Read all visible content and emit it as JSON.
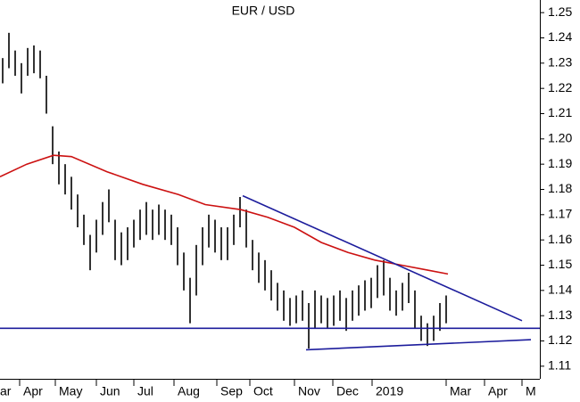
{
  "chart_data": {
    "type": "ohlc",
    "title": "EUR / USD",
    "xlim": [
      0,
      605
    ],
    "ylim": [
      1.105,
      1.255
    ],
    "xticks": [
      {
        "value": -4,
        "label": "ar"
      },
      {
        "value": 22,
        "label": "Apr"
      },
      {
        "value": 62,
        "label": "May"
      },
      {
        "value": 108,
        "label": "Jun"
      },
      {
        "value": 150,
        "label": "Jul"
      },
      {
        "value": 195,
        "label": "Aug"
      },
      {
        "value": 243,
        "label": "Sep"
      },
      {
        "value": 280,
        "label": "Oct"
      },
      {
        "value": 330,
        "label": "Nov"
      },
      {
        "value": 373,
        "label": "Dec"
      },
      {
        "value": 417,
        "label": "2019"
      },
      {
        "value": 500,
        "label": "Mar"
      },
      {
        "value": 543,
        "label": "Apr"
      },
      {
        "value": 585,
        "label": "M"
      }
    ],
    "yticks": [
      {
        "value": 1.11,
        "label": "1.11"
      },
      {
        "value": 1.12,
        "label": "1.12"
      },
      {
        "value": 1.13,
        "label": "1.13"
      },
      {
        "value": 1.14,
        "label": "1.14"
      },
      {
        "value": 1.15,
        "label": "1.15"
      },
      {
        "value": 1.16,
        "label": "1.16"
      },
      {
        "value": 1.17,
        "label": "1.17"
      },
      {
        "value": 1.18,
        "label": "1.18"
      },
      {
        "value": 1.19,
        "label": "1.19"
      },
      {
        "value": 1.2,
        "label": "1.20"
      },
      {
        "value": 1.21,
        "label": "1.21"
      },
      {
        "value": 1.22,
        "label": "1.22"
      },
      {
        "value": 1.23,
        "label": "1.23"
      },
      {
        "value": 1.24,
        "label": "1.24"
      },
      {
        "value": 1.25,
        "label": "1.25"
      }
    ],
    "bar_color": "#000000",
    "x": [
      3,
      10,
      17,
      24,
      31,
      38,
      45,
      52,
      59,
      66,
      73,
      80,
      87,
      94,
      101,
      108,
      115,
      122,
      129,
      136,
      143,
      150,
      157,
      164,
      171,
      178,
      185,
      192,
      199,
      206,
      213,
      220,
      227,
      234,
      241,
      248,
      255,
      262,
      269,
      276,
      283,
      290,
      297,
      304,
      311,
      318,
      325,
      332,
      339,
      346,
      353,
      360,
      367,
      374,
      381,
      388,
      395,
      402,
      409,
      416,
      423,
      430,
      437,
      444,
      451,
      458,
      465,
      472,
      479,
      486,
      493,
      500
    ],
    "high": [
      1.232,
      1.242,
      1.235,
      1.23,
      1.236,
      1.237,
      1.235,
      1.225,
      1.205,
      1.195,
      1.19,
      1.185,
      1.178,
      1.17,
      1.162,
      1.168,
      1.175,
      1.18,
      1.168,
      1.163,
      1.165,
      1.168,
      1.172,
      1.175,
      1.172,
      1.174,
      1.172,
      1.17,
      1.165,
      1.155,
      1.145,
      1.158,
      1.165,
      1.17,
      1.168,
      1.165,
      1.165,
      1.17,
      1.177,
      1.172,
      1.16,
      1.155,
      1.152,
      1.148,
      1.143,
      1.14,
      1.137,
      1.138,
      1.14,
      1.135,
      1.14,
      1.138,
      1.137,
      1.138,
      1.14,
      1.137,
      1.14,
      1.142,
      1.144,
      1.145,
      1.15,
      1.152,
      1.145,
      1.14,
      1.143,
      1.147,
      1.14,
      1.13,
      1.127,
      1.13,
      1.135,
      1.138
    ],
    "low": [
      1.222,
      1.228,
      1.225,
      1.218,
      1.225,
      1.226,
      1.224,
      1.21,
      1.19,
      1.182,
      1.178,
      1.172,
      1.165,
      1.158,
      1.148,
      1.155,
      1.162,
      1.167,
      1.152,
      1.15,
      1.152,
      1.157,
      1.16,
      1.162,
      1.16,
      1.162,
      1.16,
      1.158,
      1.15,
      1.14,
      1.127,
      1.138,
      1.15,
      1.157,
      1.155,
      1.152,
      1.152,
      1.158,
      1.165,
      1.157,
      1.148,
      1.143,
      1.14,
      1.136,
      1.132,
      1.128,
      1.126,
      1.127,
      1.128,
      1.117,
      1.125,
      1.127,
      1.125,
      1.126,
      1.128,
      1.124,
      1.128,
      1.13,
      1.132,
      1.133,
      1.137,
      1.138,
      1.132,
      1.13,
      1.132,
      1.135,
      1.125,
      1.12,
      1.118,
      1.12,
      1.124,
      1.127
    ],
    "lines": [
      {
        "color": "#cc1111",
        "x": [
          0,
          30,
          60,
          80,
          120,
          160,
          200,
          230,
          270,
          300,
          330,
          360,
          390,
          420,
          450,
          480,
          502
        ],
        "y": [
          1.185,
          1.19,
          1.1935,
          1.193,
          1.187,
          1.182,
          1.178,
          1.174,
          1.172,
          1.169,
          1.165,
          1.159,
          1.155,
          1.152,
          1.15,
          1.148,
          1.1465
        ]
      },
      {
        "color": "#1c1c9c",
        "x": [
          272,
          585
        ],
        "y": [
          1.1775,
          1.128
        ]
      },
      {
        "color": "#1c1c9c",
        "x": [
          0,
          605
        ],
        "y": [
          1.125,
          1.125
        ]
      },
      {
        "color": "#1c1c9c",
        "x": [
          343,
          595
        ],
        "y": [
          1.1165,
          1.1205
        ]
      }
    ]
  }
}
